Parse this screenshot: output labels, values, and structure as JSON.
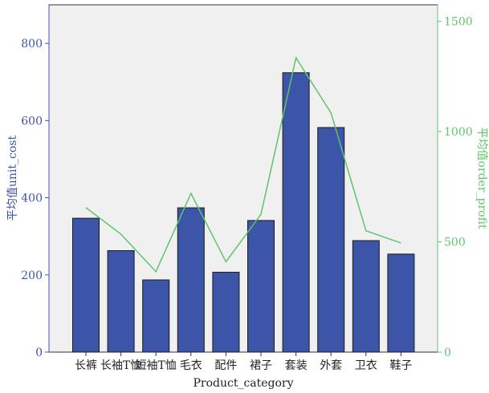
{
  "chart_data": {
    "type": "bar",
    "categories": [
      "长裤",
      "长袖T恤",
      "短袖T恤",
      "毛衣",
      "配件",
      "裙子",
      "套装",
      "外套",
      "卫衣",
      "鞋子"
    ],
    "xlabel": "Product_category",
    "series": [
      {
        "name": "平均值unit_cost",
        "type": "bar",
        "axis": "left",
        "values": [
          347,
          263,
          187,
          374,
          207,
          341,
          724,
          582,
          289,
          254
        ]
      },
      {
        "name": "平均值order_profit",
        "type": "line",
        "axis": "right",
        "values": [
          655,
          535,
          365,
          720,
          410,
          625,
          1335,
          1085,
          550,
          495
        ]
      }
    ],
    "left_axis": {
      "label": "平均值unit_cost",
      "ylim": [
        0,
        900
      ],
      "ticks": [
        "0",
        "200",
        "400",
        "600",
        "800"
      ]
    },
    "right_axis": {
      "label": "平均值order_profit",
      "ylim": [
        0,
        1575
      ],
      "ticks": [
        "0",
        "500",
        "1000",
        "1500"
      ]
    },
    "colors": {
      "bar_fill": "#3d55a8",
      "bar_stroke": "#1a1a1a",
      "line": "#5ec46a",
      "plot_background": "#f0f0f0",
      "left_axis": "#3d55a8",
      "right_axis": "#5ec46a"
    },
    "grid": false,
    "legend": "none"
  }
}
